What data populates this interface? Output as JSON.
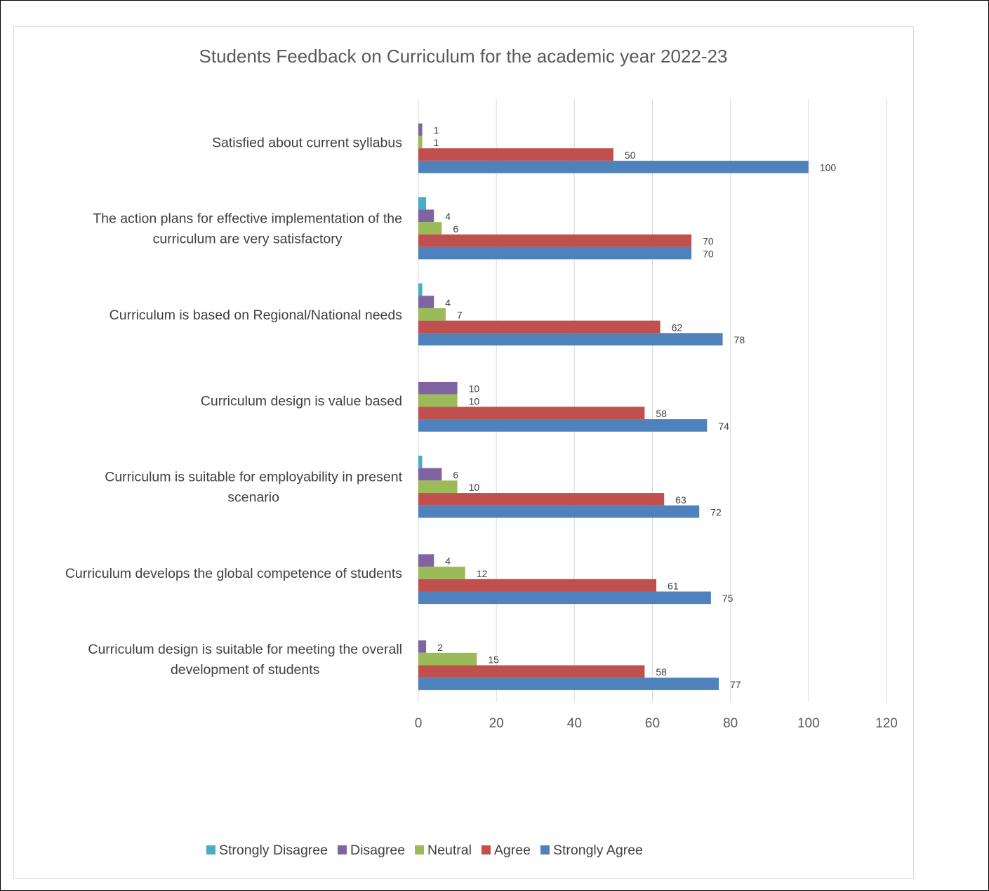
{
  "chart_data": {
    "type": "bar",
    "orientation": "horizontal",
    "title": "Students Feedback on Curriculum for the academic year 2022-23",
    "xlabel": "",
    "ylabel": "",
    "xlim": [
      0,
      120
    ],
    "x_ticks": [
      0,
      20,
      40,
      60,
      80,
      100,
      120
    ],
    "grid": true,
    "legend_position": "bottom",
    "categories": [
      "Satisfied about current syllabus",
      "The action plans for effective implementation of the curriculum are very satisfactory",
      "Curriculum is based on Regional/National needs",
      "Curriculum design is value based",
      "Curriculum is suitable for employability in present scenario",
      "Curriculum develops the global competence of students",
      "Curriculum design is suitable for meeting the overall development of students"
    ],
    "category_lines": [
      [
        "Satisfied about current syllabus"
      ],
      [
        "The action plans for effective implementation of the",
        "curriculum are very satisfactory"
      ],
      [
        "Curriculum is based on Regional/National needs"
      ],
      [
        "Curriculum design is value based"
      ],
      [
        "Curriculum is suitable for employability in present",
        "scenario"
      ],
      [
        "Curriculum develops the global competence of students"
      ],
      [
        "Curriculum design is suitable for meeting the overall",
        "development of students"
      ]
    ],
    "series": [
      {
        "name": "Strongly Disagree",
        "color": "#4bacc6",
        "values": [
          0,
          2,
          1,
          0,
          1,
          0,
          0
        ]
      },
      {
        "name": "Disagree",
        "color": "#8064a2",
        "values": [
          1,
          4,
          4,
          10,
          6,
          4,
          2
        ]
      },
      {
        "name": "Neutral",
        "color": "#9bbb59",
        "values": [
          1,
          6,
          7,
          10,
          10,
          12,
          15
        ]
      },
      {
        "name": "Agree",
        "color": "#c0504d",
        "values": [
          50,
          70,
          62,
          58,
          63,
          61,
          58
        ]
      },
      {
        "name": "Strongly Agree",
        "color": "#4f81bd",
        "values": [
          100,
          70,
          78,
          74,
          72,
          75,
          77
        ]
      }
    ],
    "show_data_labels": [
      false,
      true,
      true,
      true,
      true
    ]
  }
}
